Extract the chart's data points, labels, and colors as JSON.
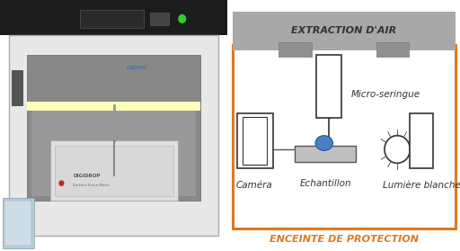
{
  "background_color": "#ffffff",
  "photo_bg": "#c0bfbf",
  "diagram": {
    "title_bar_text": "EXTRACTION D'AIR",
    "title_bar_color": "#a8a8a8",
    "title_bar_text_color": "#333333",
    "orange_border_color": "#e07820",
    "bottom_label": "ENCEINTE DE PROTECTION",
    "bottom_label_color": "#e07820",
    "camera_label": "Caméra",
    "echantillon_label": "Echantillon",
    "micro_label": "Micro-seringue",
    "lumiere_label": "Lumière blanche",
    "drop_color": "#4a7fc1",
    "drop_border": "#2255aa",
    "vent_color": "#909090"
  }
}
